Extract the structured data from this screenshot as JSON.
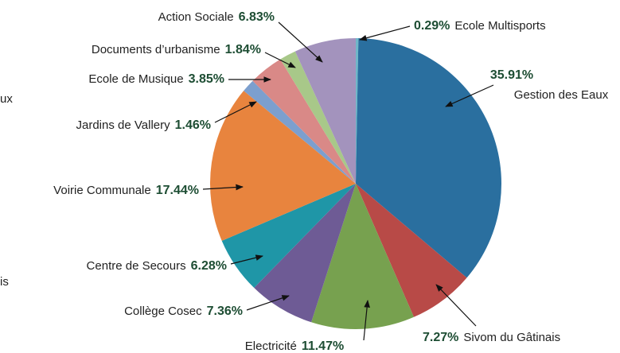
{
  "chart_data": {
    "type": "pie",
    "categories": [
      "Ecole Multisports",
      "Gestion des Eaux",
      "Sivom du Gâtinais",
      "Electricité",
      "Collège Cosec",
      "Centre de Secours",
      "Voirie Communale",
      "Jardins de Vallery",
      "Ecole de Musique",
      "Documents d’urbanisme",
      "Action Sociale"
    ],
    "values": [
      0.29,
      35.91,
      7.27,
      11.47,
      7.36,
      6.28,
      17.44,
      1.46,
      3.85,
      1.84,
      6.83
    ],
    "value_labels": [
      "0.29%",
      "35.91%",
      "7.27%",
      "11.47%",
      "7.36%",
      "6.28%",
      "17.44%",
      "1.46%",
      "3.85%",
      "1.84%",
      "6.83%"
    ],
    "colors": [
      "#6fb7c9",
      "#2a6f9f",
      "#b84a47",
      "#77a14f",
      "#6e5b95",
      "#1f96a7",
      "#e8843e",
      "#7c9fce",
      "#d98987",
      "#a8c889",
      "#a393bd"
    ],
    "cropped_texts": [
      "ux",
      "is"
    ]
  }
}
